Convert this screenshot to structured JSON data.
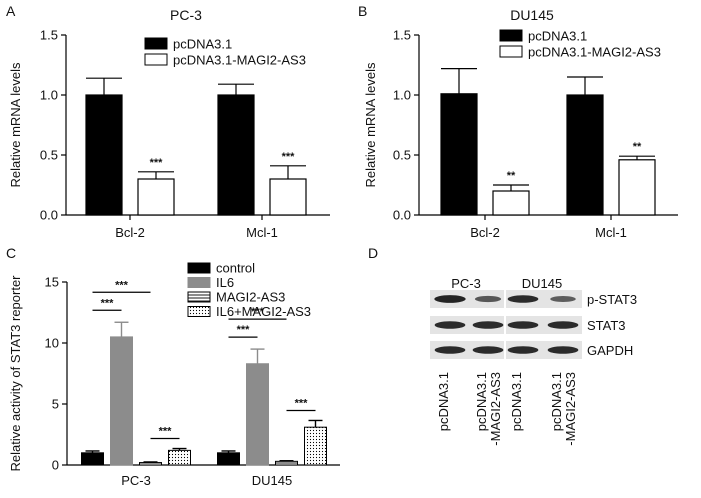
{
  "panels": [
    "A",
    "B",
    "C",
    "D"
  ],
  "chart_data": [
    {
      "id": "A",
      "type": "bar",
      "title": "PC-3",
      "ylabel": "Relative mRNA levels",
      "xlabel": "",
      "ylim": [
        0,
        1.5
      ],
      "yticks": [
        "0.0",
        "0.5",
        "1.0",
        "1.5"
      ],
      "categories": [
        "Bcl-2",
        "Mcl-1"
      ],
      "legend_position": "top",
      "series": [
        {
          "name": "pcDNA3.1",
          "fill": "#000000",
          "values": [
            1.0,
            1.0
          ],
          "errors": [
            0.14,
            0.09
          ],
          "sig": [
            "",
            ""
          ]
        },
        {
          "name": "pcDNA3.1-MAGI2-AS3",
          "fill": "#ffffff",
          "values": [
            0.3,
            0.3
          ],
          "errors": [
            0.06,
            0.11
          ],
          "sig": [
            "***",
            "***"
          ]
        }
      ]
    },
    {
      "id": "B",
      "type": "bar",
      "title": "DU145",
      "ylabel": "Relative mRNA levels",
      "xlabel": "",
      "ylim": [
        0,
        1.5
      ],
      "yticks": [
        "0.0",
        "0.5",
        "1.0",
        "1.5"
      ],
      "categories": [
        "Bcl-2",
        "Mcl-1"
      ],
      "legend_position": "top",
      "series": [
        {
          "name": "pcDNA3.1",
          "fill": "#000000",
          "values": [
            1.01,
            1.0
          ],
          "errors": [
            0.21,
            0.15
          ],
          "sig": [
            "",
            ""
          ]
        },
        {
          "name": "pcDNA3.1-MAGI2-AS3",
          "fill": "#ffffff",
          "values": [
            0.2,
            0.46
          ],
          "errors": [
            0.05,
            0.03
          ],
          "sig": [
            "**",
            "**"
          ]
        }
      ]
    },
    {
      "id": "C",
      "type": "bar",
      "title": "",
      "ylabel": "Relative activity of STAT3 reporter",
      "xlabel": "",
      "ylim": [
        0,
        15
      ],
      "yticks": [
        "0",
        "5",
        "10",
        "15"
      ],
      "categories": [
        "PC-3",
        "DU145"
      ],
      "legend_position": "top-right",
      "series": [
        {
          "name": "control",
          "fill": "#000000",
          "pattern": "solid",
          "values": [
            1.0,
            1.0
          ],
          "errors": [
            0.15,
            0.15
          ]
        },
        {
          "name": "IL6",
          "fill": "#8c8c8c",
          "pattern": "solid",
          "values": [
            10.5,
            8.3
          ],
          "errors": [
            1.2,
            1.2
          ]
        },
        {
          "name": "MAGI2-AS3",
          "fill": "#ffffff",
          "pattern": "hstripes",
          "values": [
            0.2,
            0.3
          ],
          "errors": [
            0.05,
            0.05
          ]
        },
        {
          "name": "IL6+MAGI2-AS3",
          "fill": "#ffffff",
          "pattern": "dots",
          "values": [
            1.2,
            3.1
          ],
          "errors": [
            0.15,
            0.55
          ]
        }
      ],
      "brackets": [
        {
          "category": 0,
          "from": 0,
          "to": 2,
          "label": "***"
        },
        {
          "category": 0,
          "from": 0,
          "to": 1,
          "label": "***"
        },
        {
          "category": 0,
          "from": 2,
          "to": 3,
          "label": "***"
        },
        {
          "category": 1,
          "from": 0,
          "to": 2,
          "label": "***"
        },
        {
          "category": 1,
          "from": 0,
          "to": 1,
          "label": "***"
        },
        {
          "category": 1,
          "from": 2,
          "to": 3,
          "label": "***"
        }
      ]
    }
  ],
  "blot": {
    "groups": [
      "PC-3",
      "DU145"
    ],
    "bands": [
      "p-STAT3",
      "STAT3",
      "GAPDH"
    ],
    "lanes": [
      "pcDNA3.1",
      "pcDNA3.1\n-MAGI2-AS3",
      "pcDNA3.1",
      "pcDNA3.1\n-MAGI2-AS3"
    ],
    "intensities": [
      [
        0.95,
        0.55,
        0.9,
        0.5
      ],
      [
        0.9,
        0.9,
        0.9,
        0.9
      ],
      [
        0.9,
        0.9,
        0.9,
        0.9
      ]
    ]
  }
}
